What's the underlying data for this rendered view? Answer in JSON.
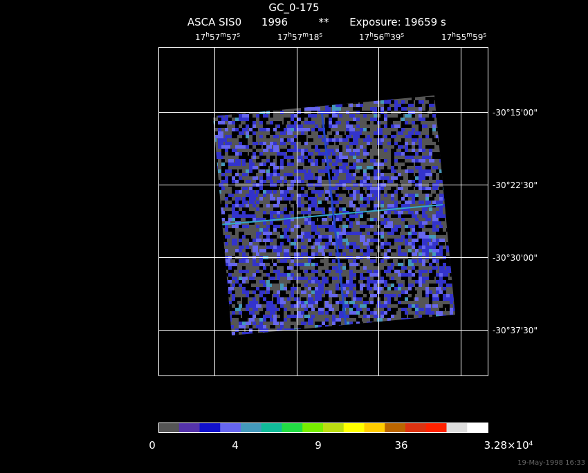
{
  "header": {
    "title": "GC_0-175",
    "instrument": "ASCA SIS0",
    "year": "1996",
    "flag": "**",
    "exposure": "Exposure: 19659 s"
  },
  "ra_labels": [
    [
      "17",
      "h",
      "57",
      "m",
      "57",
      "s"
    ],
    [
      "17",
      "h",
      "57",
      "m",
      "18",
      "s"
    ],
    [
      "17",
      "h",
      "56",
      "m",
      "39",
      "s"
    ],
    [
      "17",
      "h",
      "55",
      "m",
      "59",
      "s"
    ]
  ],
  "dec_labels": [
    "-30°15'00\"",
    "-30°22'30\"",
    "-30°30'00\"",
    "-30°37'30\""
  ],
  "colorbar": {
    "labels": [
      [
        "0"
      ],
      [
        "4"
      ],
      [
        "9"
      ],
      [
        "36"
      ],
      [
        "3.28×10",
        "4"
      ]
    ]
  },
  "timestamp": "19-May-1998 16:33"
}
